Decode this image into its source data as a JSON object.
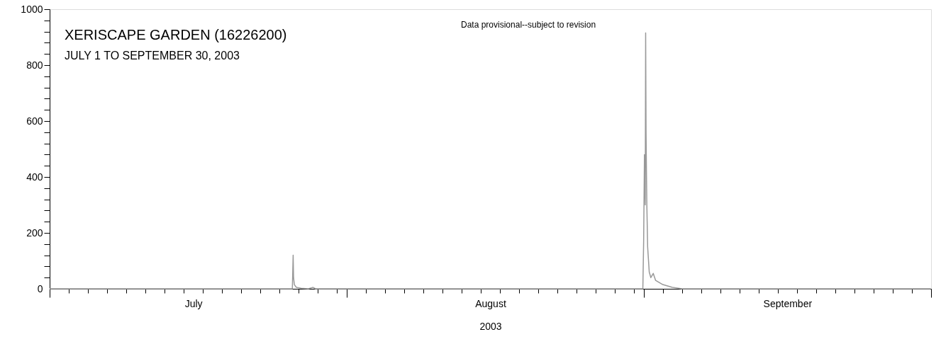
{
  "chart_data": {
    "type": "line",
    "title": "XERISCAPE GARDEN (16226200)",
    "subtitle": "JULY 1 TO SEPTEMBER 30, 2003",
    "xlabel": "2003",
    "annotations": [
      "Data provisional--subject to revision"
    ],
    "series": [
      {
        "color": "#999999",
        "x": [
          "2003-07-01T00:00",
          "2003-07-26T08:00",
          "2003-07-26T10:00",
          "2003-07-26T11:00",
          "2003-07-26T13:00",
          "2003-07-26T18:00",
          "2003-07-27T06:00",
          "2003-07-28T00:00",
          "2003-07-28T12:00",
          "2003-07-28T18:00",
          "2003-08-31T22:00",
          "2003-09-01T00:00",
          "2003-09-01T02:00",
          "2003-09-01T04:00",
          "2003-09-01T05:00",
          "2003-09-01T06:00",
          "2003-09-01T07:00",
          "2003-09-01T08:00",
          "2003-09-01T10:00",
          "2003-09-01T14:00",
          "2003-09-01T18:00",
          "2003-09-02T00:00",
          "2003-09-02T06:00",
          "2003-09-03T00:00",
          "2003-09-04T00:00",
          "2003-09-05T00:00",
          "2003-09-30T23:00"
        ],
        "values": [
          0,
          0,
          120,
          40,
          15,
          5,
          2,
          0,
          5,
          0,
          0,
          170,
          480,
          300,
          915,
          560,
          420,
          300,
          150,
          60,
          40,
          55,
          30,
          15,
          5,
          0,
          0
        ]
      }
    ],
    "xlim": [
      "2003-07-01",
      "2003-10-01"
    ],
    "xticks": [
      {
        "value": "2003-07-01",
        "label": null
      },
      {
        "value": "2003-07-03",
        "label": null
      },
      {
        "value": "2003-07-05",
        "label": null
      },
      {
        "value": "2003-07-07",
        "label": null
      },
      {
        "value": "2003-07-09",
        "label": null
      },
      {
        "value": "2003-07-11",
        "label": null
      },
      {
        "value": "2003-07-13",
        "label": null
      },
      {
        "value": "2003-07-15",
        "label": null
      },
      {
        "value": "2003-07-16",
        "label": "July"
      },
      {
        "value": "2003-07-17",
        "label": null
      },
      {
        "value": "2003-07-19",
        "label": null
      },
      {
        "value": "2003-07-21",
        "label": null
      },
      {
        "value": "2003-07-23",
        "label": null
      },
      {
        "value": "2003-07-25",
        "label": null
      },
      {
        "value": "2003-07-27",
        "label": null
      },
      {
        "value": "2003-07-29",
        "label": null
      },
      {
        "value": "2003-07-31",
        "label": null
      },
      {
        "value": "2003-08-01",
        "label": null
      },
      {
        "value": "2003-08-03",
        "label": null
      },
      {
        "value": "2003-08-05",
        "label": null
      },
      {
        "value": "2003-08-07",
        "label": null
      },
      {
        "value": "2003-08-09",
        "label": null
      },
      {
        "value": "2003-08-11",
        "label": null
      },
      {
        "value": "2003-08-13",
        "label": null
      },
      {
        "value": "2003-08-15",
        "label": null
      },
      {
        "value": "2003-08-16",
        "label": "August"
      },
      {
        "value": "2003-08-17",
        "label": null
      },
      {
        "value": "2003-08-19",
        "label": null
      },
      {
        "value": "2003-08-21",
        "label": null
      },
      {
        "value": "2003-08-23",
        "label": null
      },
      {
        "value": "2003-08-25",
        "label": null
      },
      {
        "value": "2003-08-27",
        "label": null
      },
      {
        "value": "2003-08-29",
        "label": null
      },
      {
        "value": "2003-08-31",
        "label": null
      },
      {
        "value": "2003-09-01",
        "label": null
      },
      {
        "value": "2003-09-03",
        "label": null
      },
      {
        "value": "2003-09-05",
        "label": null
      },
      {
        "value": "2003-09-07",
        "label": null
      },
      {
        "value": "2003-09-09",
        "label": null
      },
      {
        "value": "2003-09-11",
        "label": null
      },
      {
        "value": "2003-09-13",
        "label": null
      },
      {
        "value": "2003-09-15",
        "label": null
      },
      {
        "value": "2003-09-16",
        "label": "September"
      },
      {
        "value": "2003-09-17",
        "label": null
      },
      {
        "value": "2003-09-19",
        "label": null
      },
      {
        "value": "2003-09-21",
        "label": null
      },
      {
        "value": "2003-09-23",
        "label": null
      },
      {
        "value": "2003-09-25",
        "label": null
      },
      {
        "value": "2003-09-27",
        "label": null
      },
      {
        "value": "2003-09-29",
        "label": null
      },
      {
        "value": "2003-10-01",
        "label": null
      }
    ],
    "ylim": [
      0,
      1000
    ],
    "yticks": [
      {
        "value": 0,
        "label": "0"
      },
      {
        "value": 40,
        "label": null
      },
      {
        "value": 80,
        "label": null
      },
      {
        "value": 120,
        "label": null
      },
      {
        "value": 160,
        "label": null
      },
      {
        "value": 200,
        "label": "200"
      },
      {
        "value": 240,
        "label": null
      },
      {
        "value": 280,
        "label": null
      },
      {
        "value": 320,
        "label": null
      },
      {
        "value": 360,
        "label": null
      },
      {
        "value": 400,
        "label": "400"
      },
      {
        "value": 440,
        "label": null
      },
      {
        "value": 480,
        "label": null
      },
      {
        "value": 520,
        "label": null
      },
      {
        "value": 560,
        "label": null
      },
      {
        "value": 600,
        "label": "600"
      },
      {
        "value": 640,
        "label": null
      },
      {
        "value": 680,
        "label": null
      },
      {
        "value": 720,
        "label": null
      },
      {
        "value": 760,
        "label": null
      },
      {
        "value": 800,
        "label": "800"
      },
      {
        "value": 840,
        "label": null
      },
      {
        "value": 880,
        "label": null
      },
      {
        "value": 920,
        "label": null
      },
      {
        "value": 960,
        "label": null
      },
      {
        "value": 1000,
        "label": "1000"
      }
    ],
    "grid": false
  }
}
